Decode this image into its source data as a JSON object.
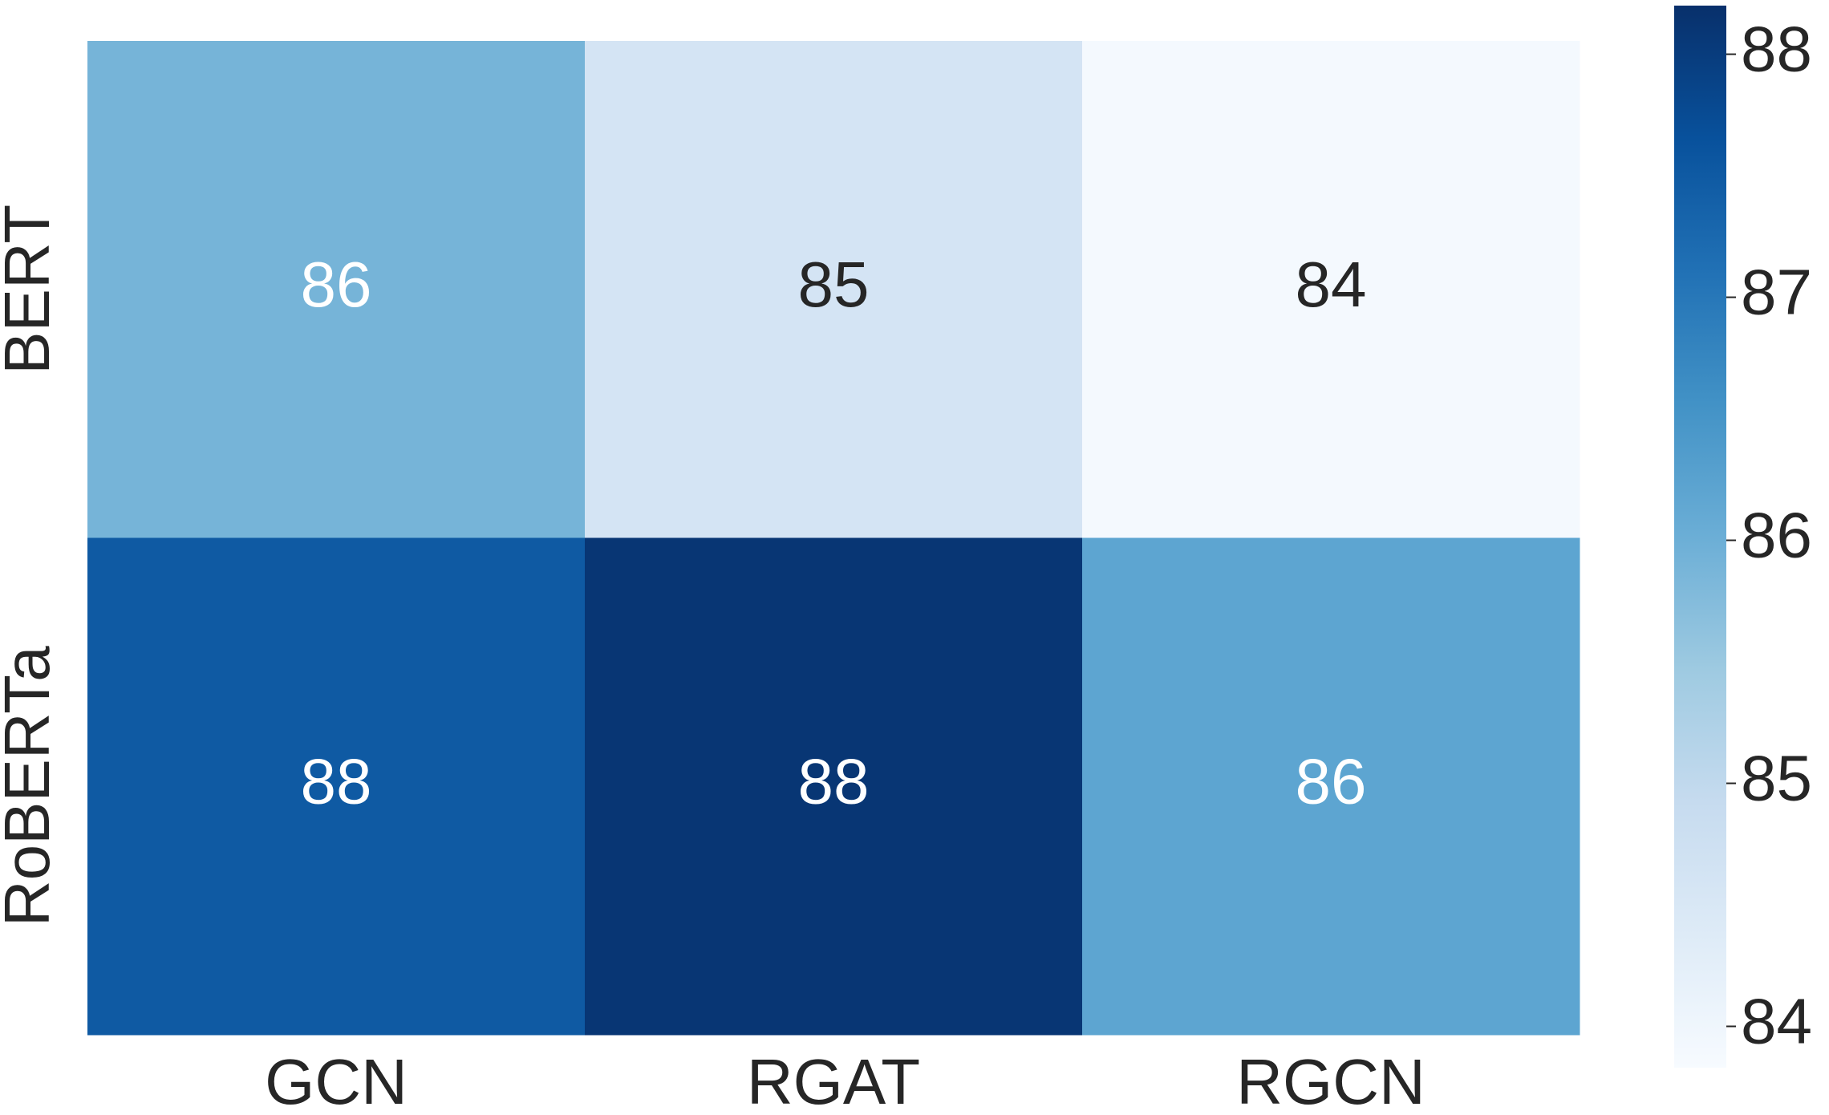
{
  "chart_data": {
    "type": "heatmap",
    "x_categories": [
      "GCN",
      "RGAT",
      "RGCN"
    ],
    "y_categories": [
      "BERT",
      "RoBERTa"
    ],
    "values": [
      [
        85.9,
        84.6,
        83.9
      ],
      [
        87.5,
        88.1,
        86.2
      ]
    ],
    "value_labels": [
      [
        "86",
        "85",
        "84"
      ],
      [
        "88",
        "88",
        "86"
      ]
    ],
    "colormap": [
      "#f7fbff",
      "#deebf7",
      "#c6dbef",
      "#9ecae1",
      "#6baed6",
      "#4292c6",
      "#2171b5",
      "#08519c",
      "#08306b"
    ],
    "zlim": [
      83.83,
      88.2
    ],
    "zticks": [
      84,
      85,
      86,
      87,
      88
    ]
  }
}
